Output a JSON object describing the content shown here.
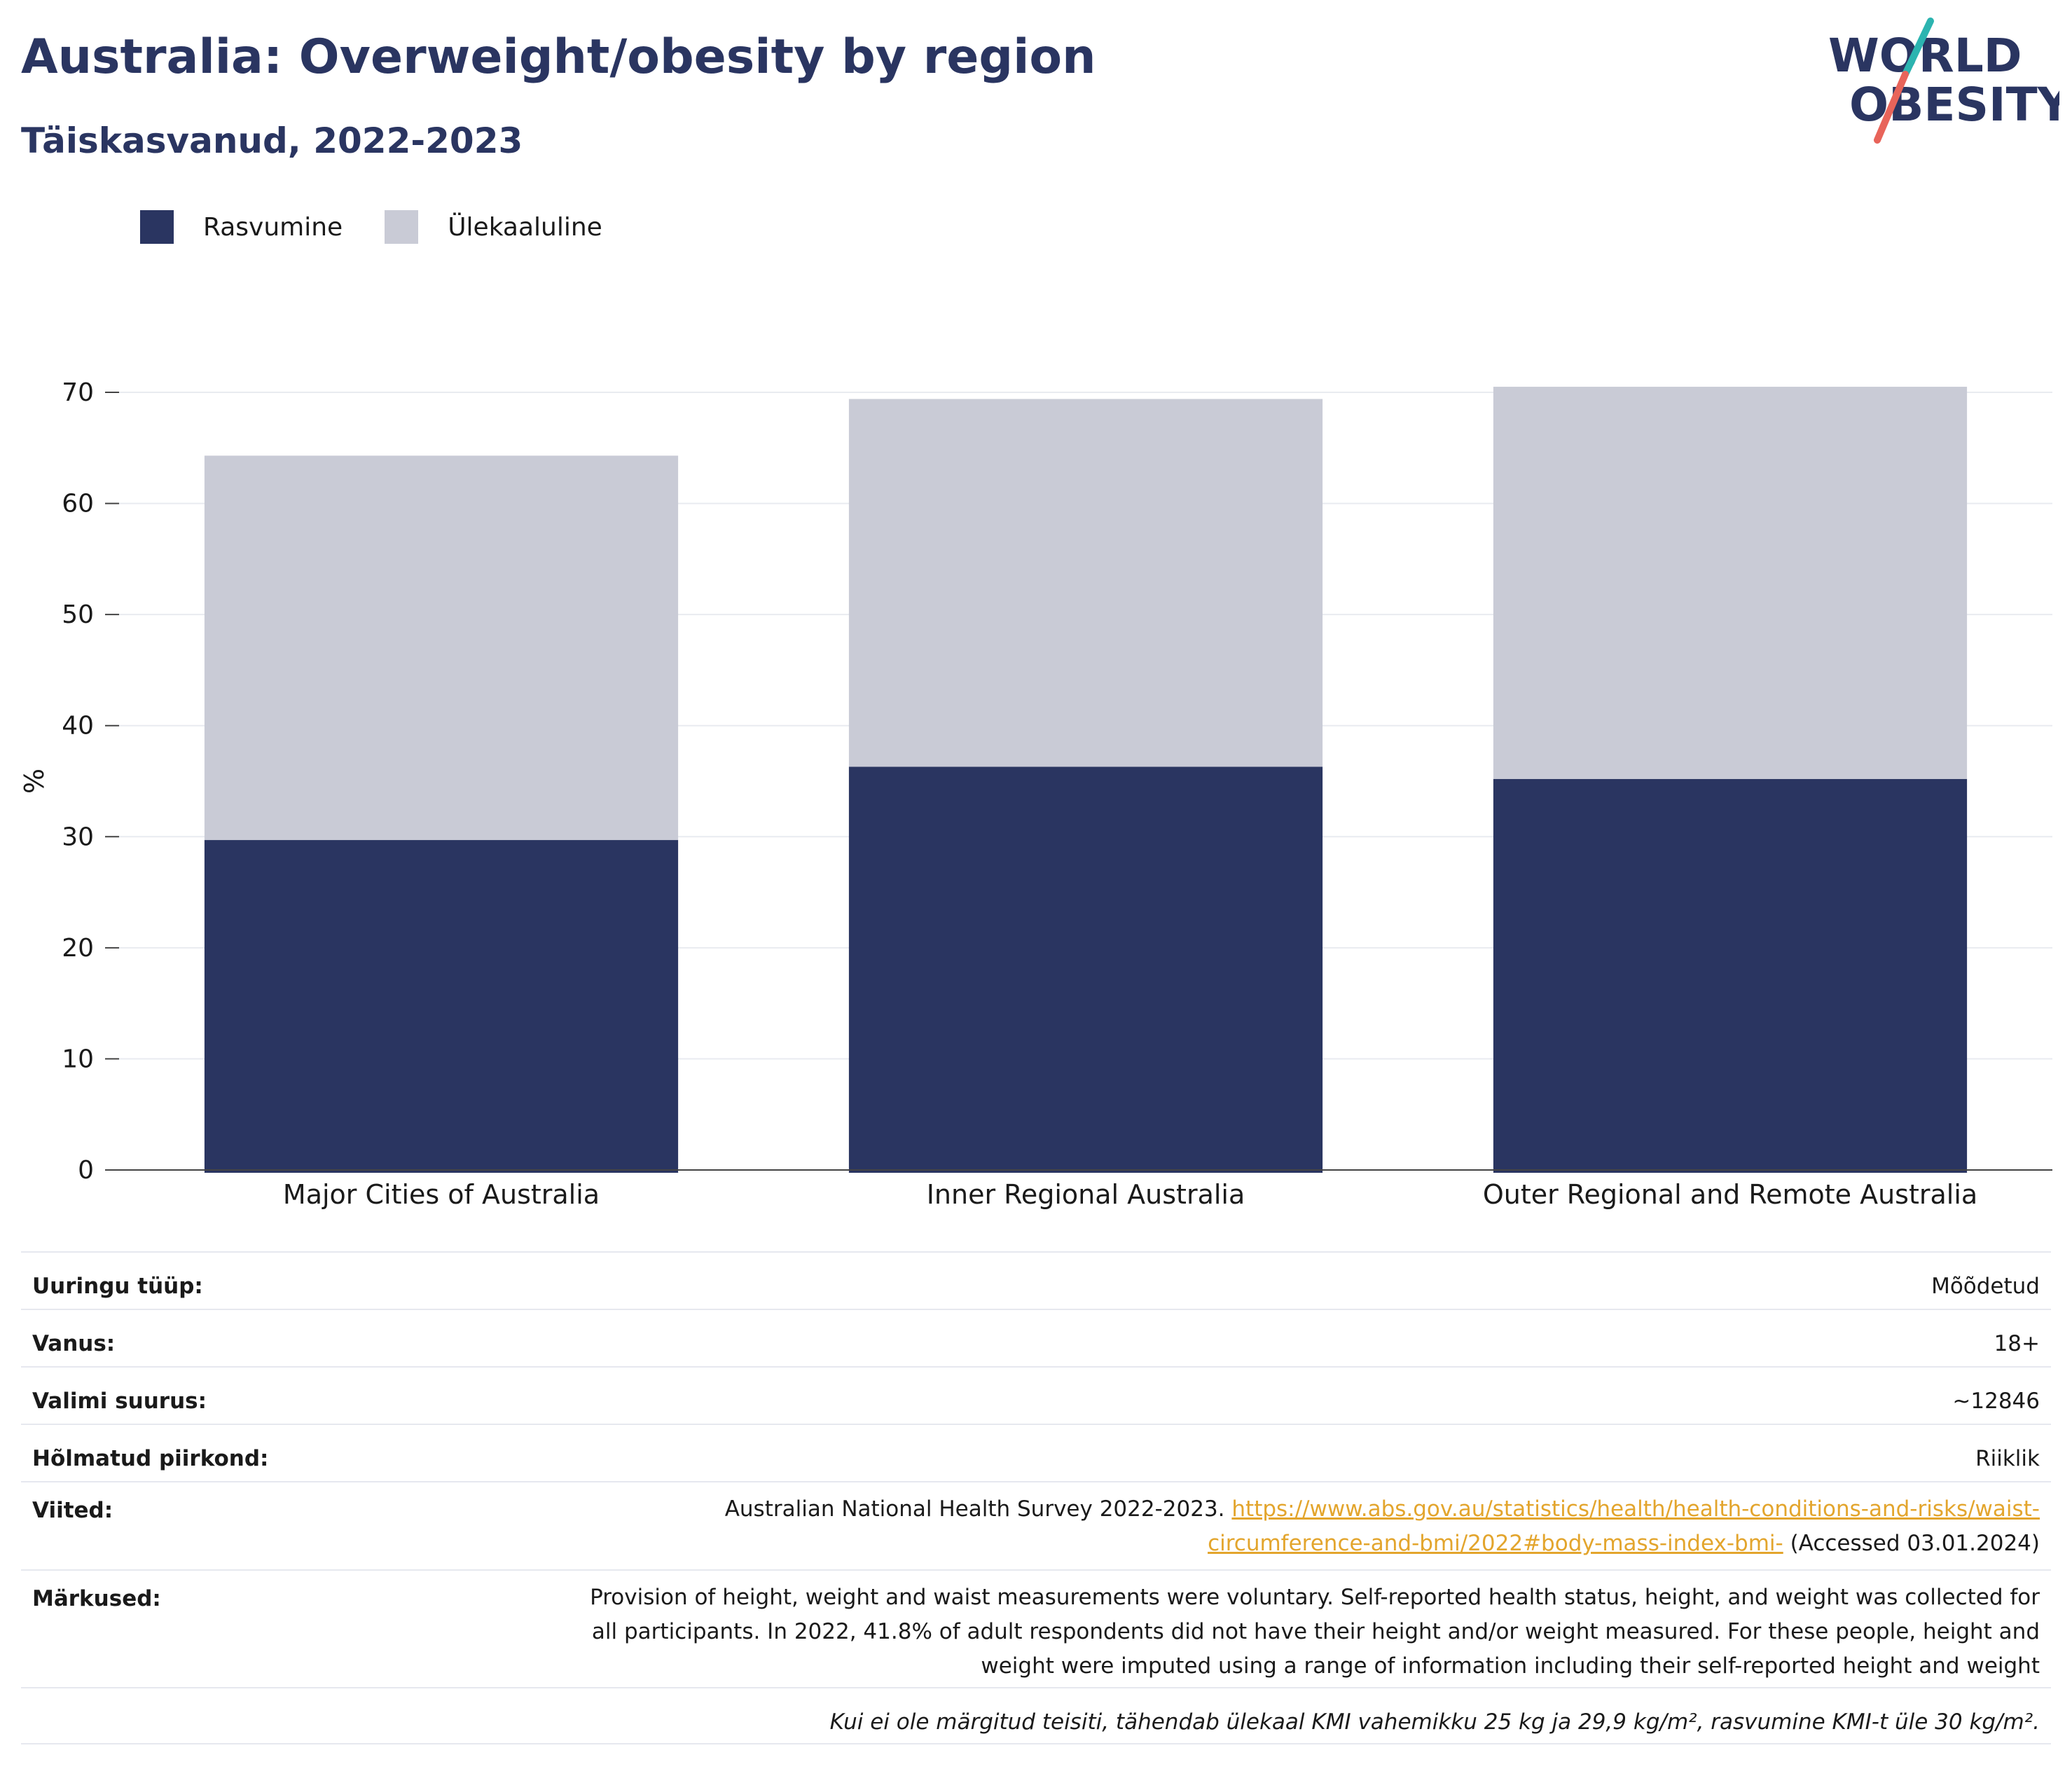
{
  "header": {
    "title": "Australia: Overweight/obesity by region",
    "subtitle": "Täiskasvanud, 2022-2023"
  },
  "logo": {
    "line1": "WORLD",
    "line2": "OBESITY",
    "colors": {
      "text": "#2a3561",
      "slash_top": "#2cb4b0",
      "slash_bottom": "#e8645a"
    }
  },
  "legend": [
    {
      "name": "Rasvumine",
      "color": "#2a3561"
    },
    {
      "name": "Ülekaaluline",
      "color": "#c9cbd6"
    }
  ],
  "chart_data": {
    "type": "bar",
    "stacked": true,
    "categories": [
      "Major Cities of Australia",
      "Inner Regional Australia",
      "Outer Regional and Remote Australia"
    ],
    "series": [
      {
        "name": "Rasvumine",
        "color": "#2a3561",
        "values": [
          29.7,
          36.3,
          35.2
        ]
      },
      {
        "name": "Ülekaaluline",
        "color": "#c9cbd6",
        "values": [
          34.6,
          33.1,
          35.3
        ]
      }
    ],
    "ylabel": "%",
    "ylim": [
      0,
      70
    ],
    "yticks": [
      0,
      10,
      20,
      30,
      40,
      50,
      60,
      70
    ],
    "grid": true,
    "legend_position": "top-left"
  },
  "meta": {
    "survey_type": {
      "label": "Uuringu tüüp:",
      "value": "Mõõdetud"
    },
    "age": {
      "label": "Vanus:",
      "value": "18+"
    },
    "sample_size": {
      "label": "Valimi suurus:",
      "value": "~12846"
    },
    "area": {
      "label": "Hõlmatud piirkond:",
      "value": "Riiklik"
    },
    "references": {
      "label": "Viited:",
      "text": "Australian National Health Survey 2022-2023.",
      "link_line1": "https://www.abs.gov.au/statistics/health/health-conditions-and-risks/waist-",
      "link_line2": "circumference-and-bmi/2022#body-mass-index-bmi-",
      "accessed": "(Accessed 03.01.2024)"
    },
    "notes": {
      "label": "Märkused:",
      "line1": "Provision of height, weight and waist measurements were voluntary. Self-reported health status, height, and weight was collected for",
      "line2": "all participants. In 2022, 41.8% of adult respondents did not have their height and/or weight measured. For these people, height and",
      "line3": "weight were imputed using a range of information including their self-reported height and weight"
    },
    "footnote": "Kui ei ole märgitud teisiti, tähendab ülekaal KMI vahemikku 25 kg ja 29,9 kg/m², rasvumine KMI-t üle 30 kg/m²."
  }
}
